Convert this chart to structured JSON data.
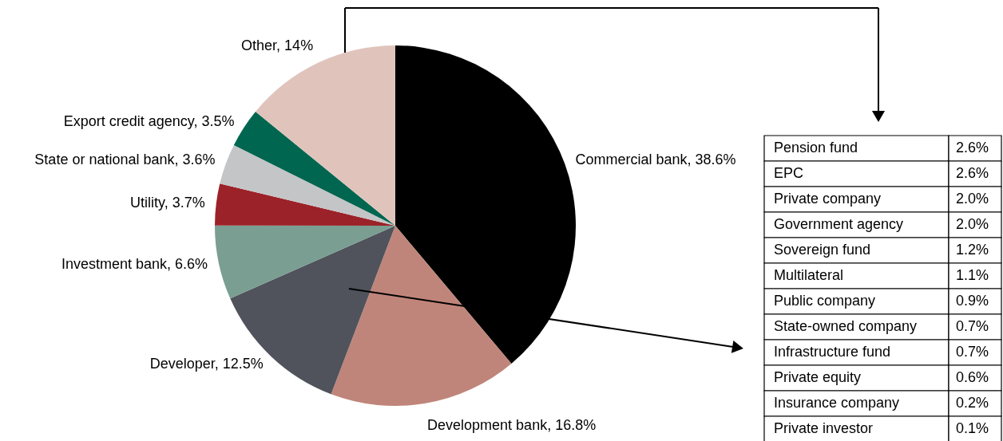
{
  "chart_data": [
    {
      "type": "pie",
      "categories": [
        "Commercial bank",
        "Development bank",
        "Developer",
        "Investment bank",
        "Utility",
        "State or national bank",
        "Export credit agency",
        "Other"
      ],
      "values": [
        38.6,
        16.8,
        12.5,
        6.6,
        3.7,
        3.6,
        3.5,
        14
      ],
      "value_labels": [
        "38.6%",
        "16.8%",
        "12.5%",
        "6.6%",
        "3.7%",
        "3.6%",
        "3.5%",
        "14%"
      ],
      "colors": [
        "#000000",
        "#c0857a",
        "#50535b",
        "#7a9e92",
        "#9b2228",
        "#c4c5c7",
        "#00664f",
        "#e0c4bc"
      ]
    },
    {
      "type": "other",
      "categories": [
        "Pension fund",
        "EPC",
        "Private company",
        "Government agency",
        "Sovereign fund",
        "Multilateral",
        "Public company",
        "State-owned company",
        "Infrastructure fund",
        "Private equity",
        "Insurance company",
        "Private investor"
      ],
      "values": [
        2.6,
        2.6,
        2.0,
        2.0,
        1.2,
        1.1,
        0.9,
        0.7,
        0.7,
        0.6,
        0.2,
        0.1
      ],
      "value_labels": [
        "2.6%",
        "2.6%",
        "2.0%",
        "2.0%",
        "1.2%",
        "1.1%",
        "0.9%",
        "0.7%",
        "0.7%",
        "0.6%",
        "0.2%",
        "0.1%"
      ]
    }
  ]
}
